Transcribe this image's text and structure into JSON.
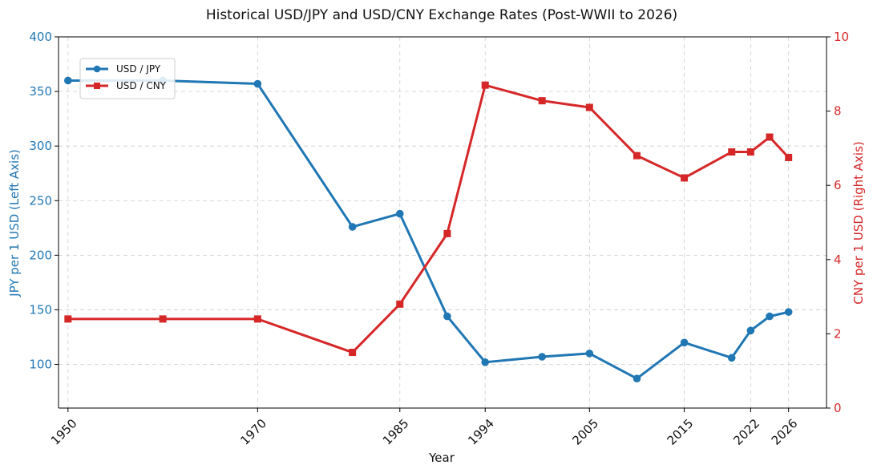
{
  "chart_data": {
    "type": "line",
    "title": "Historical USD/JPY and USD/CNY Exchange Rates (Post-WWII to 2026)",
    "xlabel": "Year",
    "ylabel_left": "JPY per 1 USD (Left Axis)",
    "ylabel_right": "CNY per 1 USD (Right Axis)",
    "xlim": [
      1949,
      2030
    ],
    "ylim_left": [
      60,
      400
    ],
    "ylim_right": [
      0,
      10
    ],
    "x_ticks": [
      1950,
      1970,
      1985,
      1994,
      2005,
      2015,
      2022,
      2026
    ],
    "y_ticks_left": [
      100,
      150,
      200,
      250,
      300,
      350,
      400
    ],
    "y_ticks_right": [
      0,
      2,
      4,
      6,
      8,
      10
    ],
    "grid": true,
    "legend_position": "top-left",
    "series": [
      {
        "name": "USD / JPY",
        "axis": "left",
        "color": "#1f77b4",
        "marker": "circle",
        "x": [
          1950,
          1960,
          1970,
          1980,
          1985,
          1990,
          1994,
          2000,
          2005,
          2010,
          2015,
          2020,
          2022,
          2024,
          2026
        ],
        "values": [
          360,
          360,
          357,
          226,
          238,
          144,
          102,
          107,
          110,
          87,
          120,
          106,
          131,
          144,
          148
        ]
      },
      {
        "name": "USD / CNY",
        "axis": "right",
        "color": "#d62728",
        "marker": "square",
        "x": [
          1950,
          1960,
          1970,
          1980,
          1985,
          1990,
          1994,
          2000,
          2005,
          2010,
          2015,
          2020,
          2022,
          2024,
          2026
        ],
        "values": [
          2.4,
          2.4,
          2.4,
          1.5,
          2.8,
          4.7,
          8.7,
          8.28,
          8.1,
          6.8,
          6.2,
          6.9,
          6.9,
          7.3,
          6.75
        ]
      }
    ],
    "colors": {
      "left_axis": "#1f77b4",
      "right_axis": "#d62728",
      "grid": "#cccccc",
      "axis_line": "#000000"
    }
  }
}
